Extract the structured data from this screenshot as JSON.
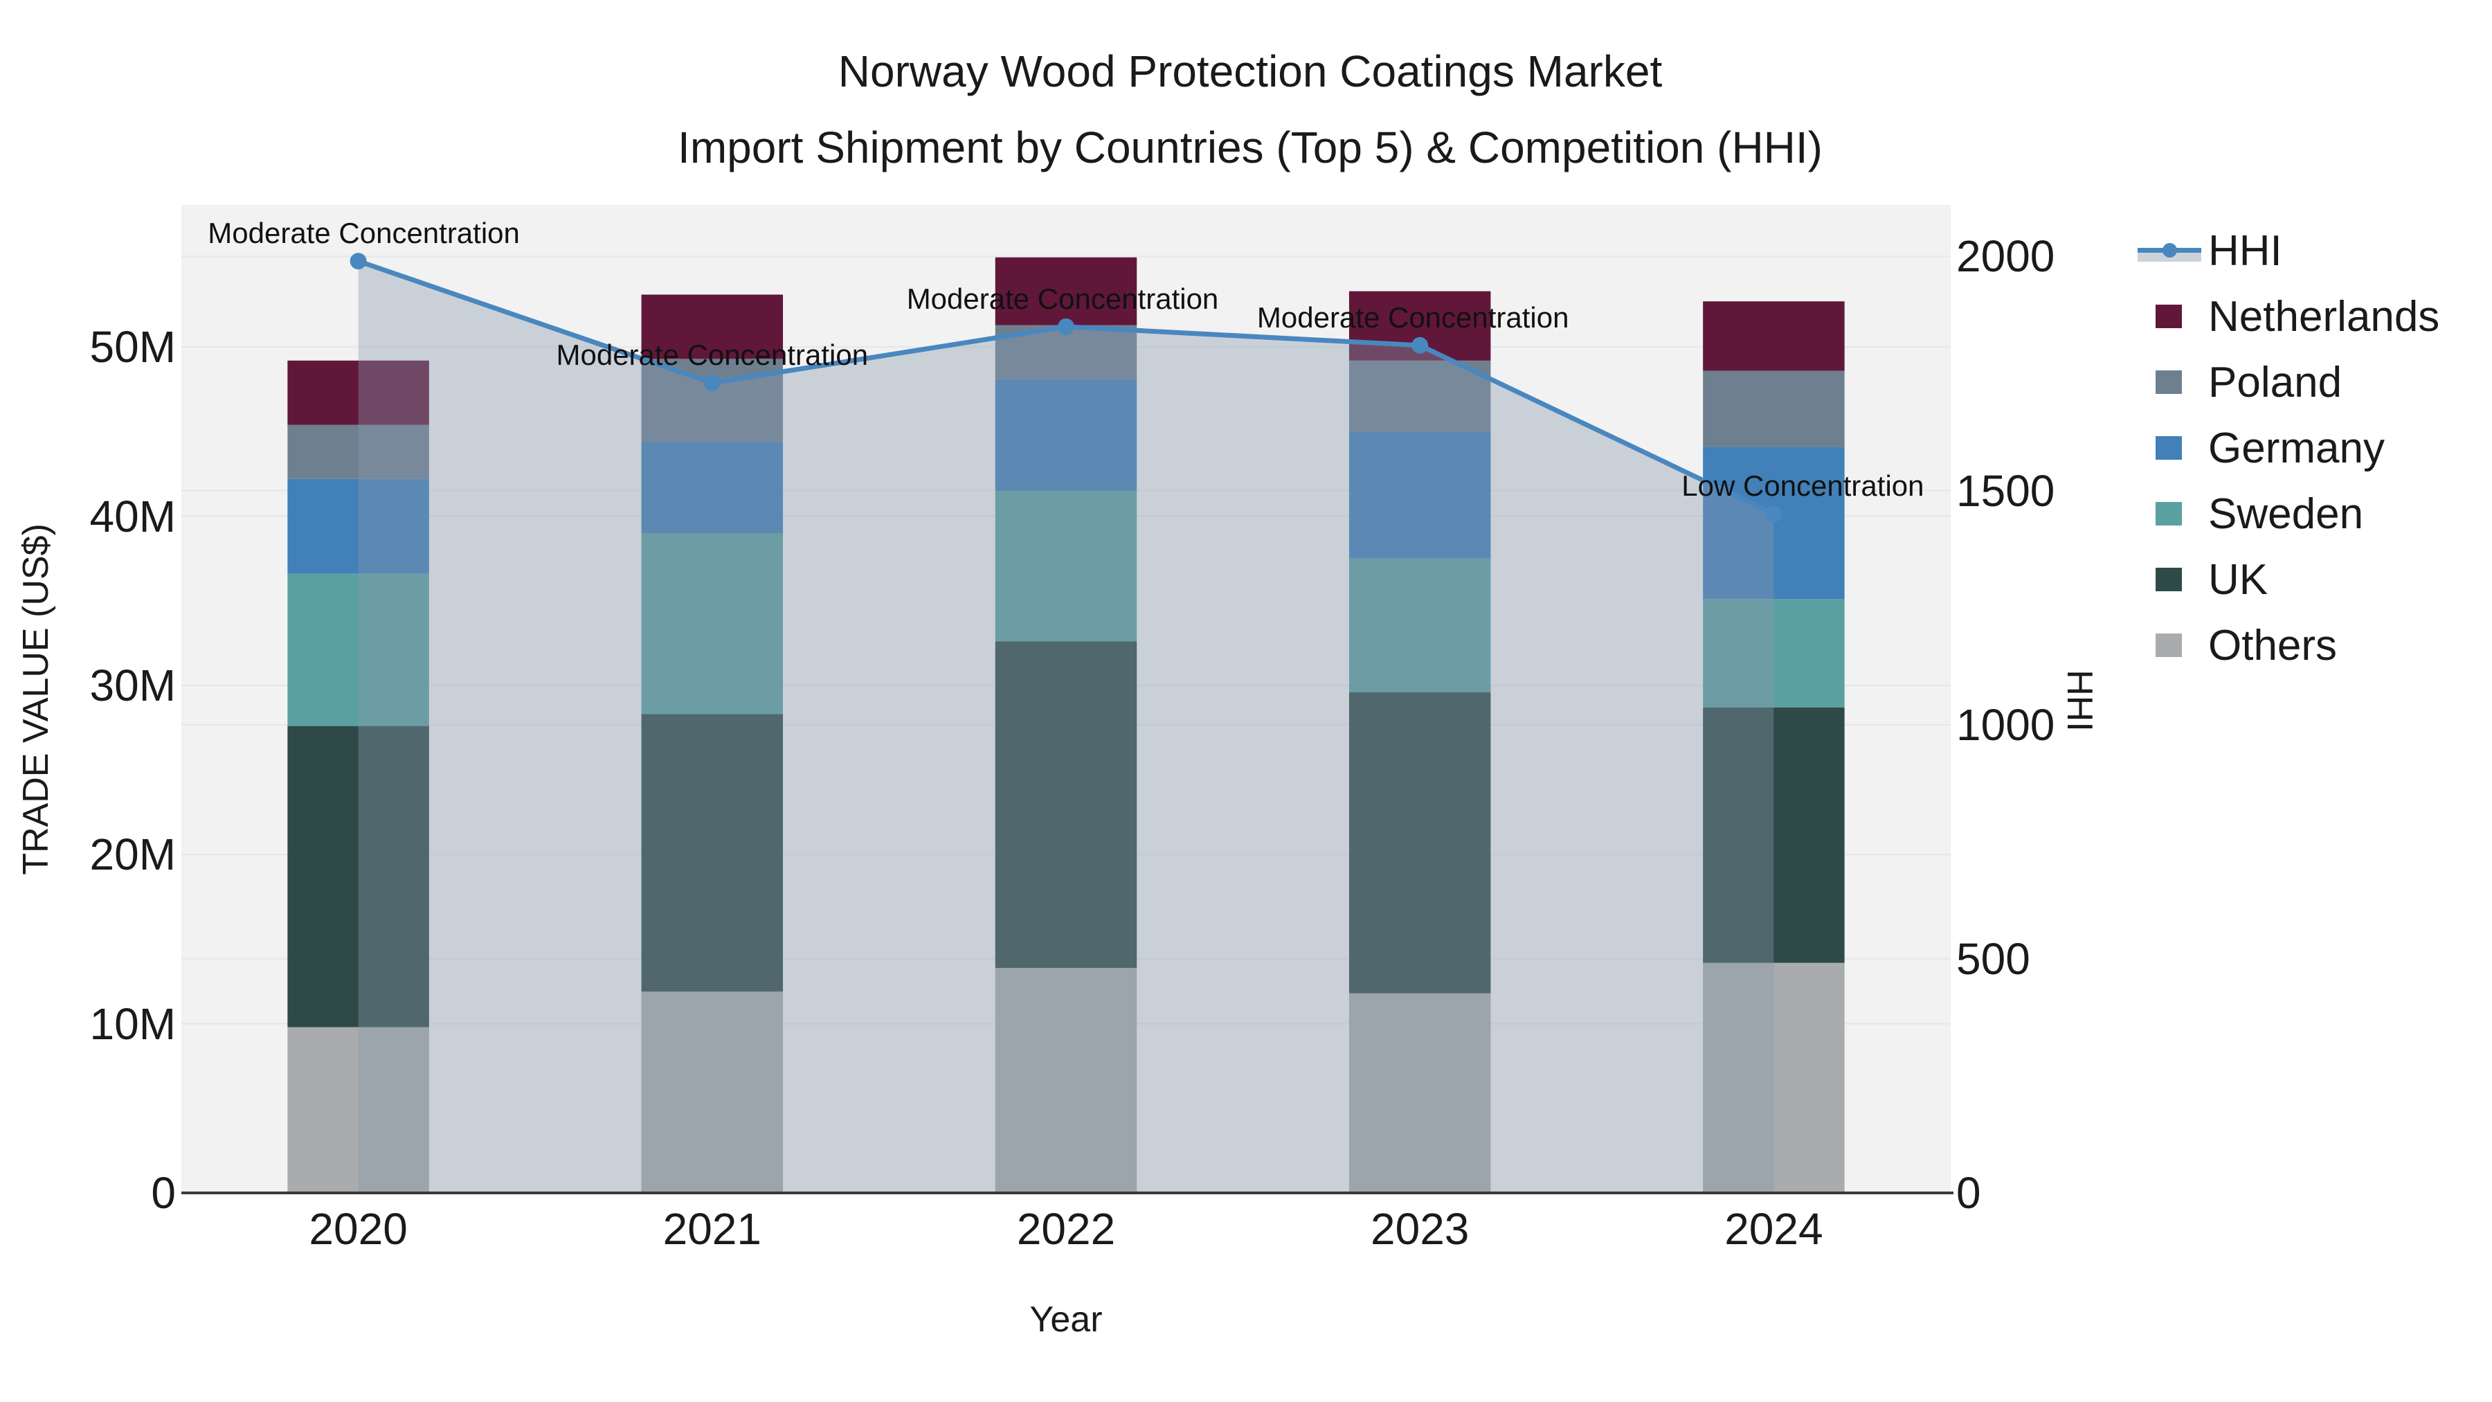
{
  "title": {
    "line1": "Norway Wood Protection Coatings Market",
    "line2": "Import Shipment by Countries (Top 5) & Competition (HHI)"
  },
  "axes": {
    "x": {
      "title": "Year",
      "ticks": [
        "2020",
        "2021",
        "2022",
        "2023",
        "2024"
      ]
    },
    "y_left": {
      "title": "TRADE VALUE (US$)",
      "ticks": [
        "0",
        "10M",
        "20M",
        "30M",
        "40M",
        "50M"
      ]
    },
    "y_right": {
      "title": "HHI",
      "ticks": [
        "0",
        "500",
        "1000",
        "1500",
        "2000"
      ]
    }
  },
  "legend": {
    "items": [
      {
        "label": "HHI",
        "type": "line",
        "color": "#4987bf",
        "fill": "#ccd2da"
      },
      {
        "label": "Netherlands",
        "type": "patch",
        "color": "#60173a"
      },
      {
        "label": "Poland",
        "type": "patch",
        "color": "#6e8090"
      },
      {
        "label": "Germany",
        "type": "patch",
        "color": "#4180b8"
      },
      {
        "label": "Sweden",
        "type": "patch",
        "color": "#5ba0a0"
      },
      {
        "label": "UK",
        "type": "patch",
        "color": "#2e4a48"
      },
      {
        "label": "Others",
        "type": "patch",
        "color": "#a9abac"
      }
    ]
  },
  "annotations": [
    {
      "category": "2020",
      "text": "Moderate Concentration"
    },
    {
      "category": "2021",
      "text": "Moderate Concentration"
    },
    {
      "category": "2022",
      "text": "Moderate Concentration"
    },
    {
      "category": "2023",
      "text": "Moderate Concentration"
    },
    {
      "category": "2024",
      "text": "Low Concentration"
    }
  ],
  "colors": {
    "plot_bg": "#f2f2f2",
    "grid": "#e6e8e9",
    "axis_line": "#3a3a3a",
    "text": "#1a1a1a",
    "hhi_area_fill": "rgba(137,152,173,0.38)"
  },
  "chart_data": {
    "type": "bar",
    "subtype": "stacked-bar-with-line-overlay",
    "categories": [
      "2020",
      "2021",
      "2022",
      "2023",
      "2024"
    ],
    "units_left": "Million US$",
    "stack_order_bottom_to_top": [
      "Others",
      "UK",
      "Sweden",
      "Germany",
      "Poland",
      "Netherlands"
    ],
    "series": [
      {
        "name": "Others",
        "color": "#a9abac",
        "values": [
          9.8,
          11.9,
          13.3,
          11.8,
          13.6
        ]
      },
      {
        "name": "UK",
        "color": "#2e4a48",
        "values": [
          17.8,
          16.4,
          19.3,
          17.8,
          15.1
        ]
      },
      {
        "name": "Sweden",
        "color": "#5ba0a0",
        "values": [
          9.0,
          10.7,
          8.9,
          7.9,
          6.4
        ]
      },
      {
        "name": "Germany",
        "color": "#4180b8",
        "values": [
          5.6,
          5.4,
          6.6,
          7.5,
          9.0
        ]
      },
      {
        "name": "Poland",
        "color": "#6e8090",
        "values": [
          3.2,
          4.9,
          3.2,
          4.2,
          4.5
        ]
      },
      {
        "name": "Netherlands",
        "color": "#60173a",
        "values": [
          3.8,
          3.8,
          4.0,
          4.1,
          4.1
        ]
      }
    ],
    "bar_totals": [
      49.2,
      53.1,
      55.3,
      53.3,
      52.7
    ],
    "line_series": {
      "name": "HHI",
      "axis": "right",
      "color": "#4987bf",
      "values": [
        1990,
        1730,
        1850,
        1810,
        1450
      ]
    },
    "title": "Norway Wood Protection Coatings Market — Import Shipment by Countries (Top 5) & Competition (HHI)",
    "xlabel": "Year",
    "ylabel_left": "TRADE VALUE (US$)",
    "ylabel_right": "HHI",
    "ylim_left": [
      0,
      58.4
    ],
    "ylim_right": [
      0,
      2110
    ],
    "grid": true,
    "legend_position": "right-outside"
  }
}
